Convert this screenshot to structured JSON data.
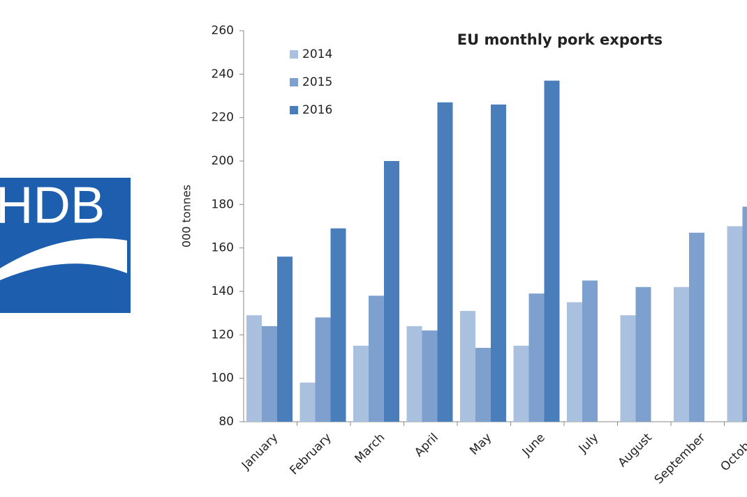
{
  "logo": {
    "text": "HDB"
  },
  "chart_data": {
    "type": "bar",
    "title": "EU monthly pork exports",
    "y_label": "000 tonnes",
    "categories": [
      "January",
      "February",
      "March",
      "April",
      "May",
      "June",
      "July",
      "August",
      "September",
      "October"
    ],
    "series": [
      {
        "name": "2014",
        "color": "#a9c0df",
        "values": [
          129,
          98,
          115,
          124,
          131,
          115,
          135,
          129,
          142,
          170
        ]
      },
      {
        "name": "2015",
        "color": "#7ea0cf",
        "values": [
          124,
          128,
          138,
          122,
          114,
          139,
          145,
          142,
          167,
          179
        ]
      },
      {
        "name": "2016",
        "color": "#4a7ebb",
        "values": [
          156,
          169,
          200,
          227,
          226,
          237,
          null,
          null,
          null,
          null
        ]
      }
    ],
    "ylim": [
      80,
      260
    ],
    "yticks": [
      80,
      100,
      120,
      140,
      160,
      180,
      200,
      220,
      240,
      260
    ],
    "grid": false
  }
}
